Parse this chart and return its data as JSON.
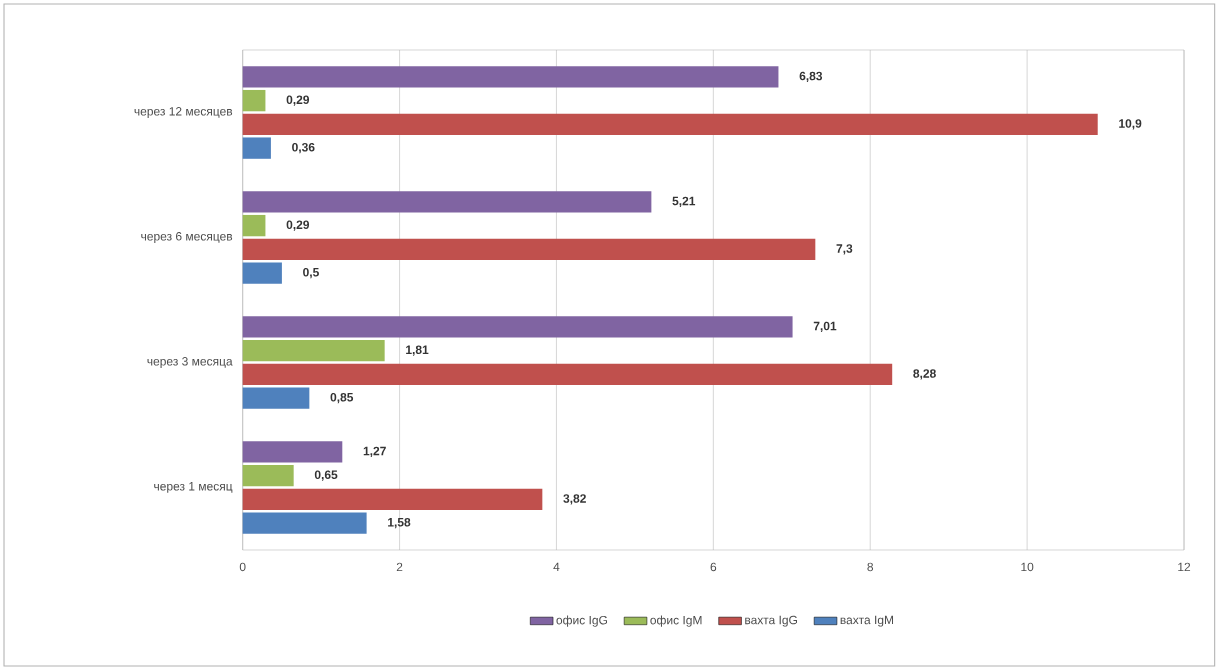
{
  "chart_data": {
    "type": "bar",
    "orientation": "horizontal",
    "categories": [
      "через 12 месяцев",
      "через 6 месяцев",
      "через 3 месяца",
      "через 1 месяц"
    ],
    "series": [
      {
        "name": "офис IgG",
        "color": "#8064a2",
        "values": [
          6.83,
          5.21,
          7.01,
          1.27
        ],
        "value_labels": [
          "6,83",
          "5,21",
          "7,01",
          "1,27"
        ]
      },
      {
        "name": "офис IgM",
        "color": "#9bbb59",
        "values": [
          0.29,
          0.29,
          1.81,
          0.65
        ],
        "value_labels": [
          "0,29",
          "0,29",
          "1,81",
          "0,65"
        ]
      },
      {
        "name": "вахта IgG",
        "color": "#c0504d",
        "values": [
          10.9,
          7.3,
          8.28,
          3.82
        ],
        "value_labels": [
          "10,9",
          "7,3",
          "8,28",
          "3,82"
        ]
      },
      {
        "name": "вахта IgM",
        "color": "#4f81bd",
        "values": [
          0.36,
          0.5,
          0.85,
          1.58
        ],
        "value_labels": [
          "0,36",
          "0,5",
          "0,85",
          "1,58"
        ]
      }
    ],
    "xlim": [
      0,
      12
    ],
    "xticks": [
      0,
      2,
      4,
      6,
      8,
      10,
      12
    ],
    "grid": "x",
    "legend": "bottom"
  }
}
